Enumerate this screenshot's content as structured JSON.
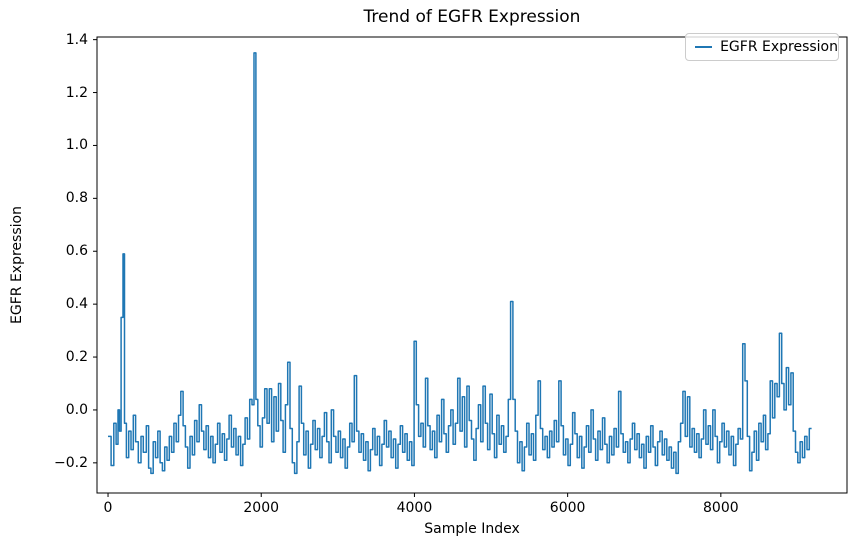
{
  "figure": {
    "background": "#ffffff",
    "spine_color": "#000000",
    "accent_color": "#1f77b4"
  },
  "chart_data": {
    "type": "line",
    "title": "Trend of EGFR Expression",
    "xlabel": "Sample Index",
    "ylabel": "EGFR Expression",
    "legend": [
      "EGFR Expression"
    ],
    "legend_position": "upper right",
    "grid": false,
    "xlim": [
      -144,
      9647
    ],
    "ylim": [
      -0.314,
      1.41
    ],
    "xticks": [
      0,
      2000,
      4000,
      6000,
      8000
    ],
    "yticks": [
      -0.2,
      0.0,
      0.2,
      0.4,
      0.6,
      0.8,
      1.0,
      1.2,
      1.4
    ],
    "series": [
      {
        "name": "EGFR Expression",
        "color": "#1f77b4",
        "points": [
          [
            0,
            -0.1
          ],
          [
            40,
            -0.21
          ],
          [
            75,
            -0.05
          ],
          [
            105,
            -0.13
          ],
          [
            130,
            0.0
          ],
          [
            150,
            -0.08
          ],
          [
            170,
            0.35
          ],
          [
            195,
            0.59
          ],
          [
            215,
            -0.05
          ],
          [
            240,
            -0.18
          ],
          [
            270,
            -0.08
          ],
          [
            300,
            -0.15
          ],
          [
            330,
            -0.02
          ],
          [
            360,
            -0.12
          ],
          [
            395,
            -0.2
          ],
          [
            430,
            -0.1
          ],
          [
            460,
            -0.16
          ],
          [
            500,
            -0.06
          ],
          [
            530,
            -0.22
          ],
          [
            560,
            -0.24
          ],
          [
            590,
            -0.12
          ],
          [
            620,
            -0.18
          ],
          [
            650,
            -0.08
          ],
          [
            680,
            -0.2
          ],
          [
            710,
            -0.23
          ],
          [
            740,
            -0.14
          ],
          [
            770,
            -0.19
          ],
          [
            800,
            -0.1
          ],
          [
            830,
            -0.16
          ],
          [
            860,
            -0.05
          ],
          [
            890,
            -0.12
          ],
          [
            920,
            -0.02
          ],
          [
            950,
            0.07
          ],
          [
            980,
            -0.06
          ],
          [
            1010,
            -0.14
          ],
          [
            1040,
            -0.22
          ],
          [
            1070,
            -0.1
          ],
          [
            1100,
            -0.17
          ],
          [
            1130,
            -0.04
          ],
          [
            1160,
            -0.12
          ],
          [
            1190,
            0.02
          ],
          [
            1220,
            -0.08
          ],
          [
            1250,
            -0.15
          ],
          [
            1280,
            -0.06
          ],
          [
            1310,
            -0.18
          ],
          [
            1340,
            -0.1
          ],
          [
            1370,
            -0.2
          ],
          [
            1400,
            -0.13
          ],
          [
            1430,
            -0.05
          ],
          [
            1460,
            -0.16
          ],
          [
            1490,
            -0.09
          ],
          [
            1520,
            -0.19
          ],
          [
            1550,
            -0.11
          ],
          [
            1580,
            -0.02
          ],
          [
            1610,
            -0.14
          ],
          [
            1640,
            -0.07
          ],
          [
            1670,
            -0.17
          ],
          [
            1700,
            -0.1
          ],
          [
            1730,
            -0.21
          ],
          [
            1760,
            -0.13
          ],
          [
            1790,
            -0.03
          ],
          [
            1820,
            -0.11
          ],
          [
            1850,
            0.04
          ],
          [
            1880,
            0.02
          ],
          [
            1905,
            1.35
          ],
          [
            1930,
            0.04
          ],
          [
            1955,
            -0.06
          ],
          [
            1985,
            -0.14
          ],
          [
            2015,
            -0.03
          ],
          [
            2045,
            0.08
          ],
          [
            2075,
            -0.05
          ],
          [
            2105,
            0.08
          ],
          [
            2135,
            -0.12
          ],
          [
            2165,
            0.05
          ],
          [
            2195,
            -0.08
          ],
          [
            2225,
            0.1
          ],
          [
            2255,
            -0.04
          ],
          [
            2285,
            -0.16
          ],
          [
            2315,
            0.02
          ],
          [
            2345,
            0.18
          ],
          [
            2375,
            -0.07
          ],
          [
            2405,
            -0.2
          ],
          [
            2435,
            -0.24
          ],
          [
            2465,
            -0.12
          ],
          [
            2495,
            0.09
          ],
          [
            2525,
            -0.05
          ],
          [
            2555,
            -0.17
          ],
          [
            2585,
            -0.08
          ],
          [
            2615,
            -0.22
          ],
          [
            2645,
            -0.13
          ],
          [
            2675,
            -0.04
          ],
          [
            2705,
            -0.15
          ],
          [
            2735,
            -0.07
          ],
          [
            2765,
            -0.18
          ],
          [
            2795,
            -0.1
          ],
          [
            2825,
            -0.01
          ],
          [
            2855,
            -0.12
          ],
          [
            2885,
            -0.2
          ],
          [
            2915,
            0.0
          ],
          [
            2945,
            -0.1
          ],
          [
            2975,
            -0.16
          ],
          [
            3005,
            -0.08
          ],
          [
            3035,
            -0.18
          ],
          [
            3065,
            -0.11
          ],
          [
            3095,
            -0.22
          ],
          [
            3125,
            -0.14
          ],
          [
            3155,
            -0.05
          ],
          [
            3185,
            -0.12
          ],
          [
            3215,
            0.13
          ],
          [
            3245,
            -0.08
          ],
          [
            3275,
            -0.16
          ],
          [
            3305,
            -0.09
          ],
          [
            3335,
            -0.19
          ],
          [
            3365,
            -0.12
          ],
          [
            3395,
            -0.23
          ],
          [
            3425,
            -0.15
          ],
          [
            3455,
            -0.07
          ],
          [
            3485,
            -0.17
          ],
          [
            3515,
            -0.1
          ],
          [
            3545,
            -0.21
          ],
          [
            3575,
            -0.13
          ],
          [
            3605,
            -0.04
          ],
          [
            3635,
            -0.14
          ],
          [
            3665,
            -0.08
          ],
          [
            3695,
            -0.18
          ],
          [
            3725,
            -0.11
          ],
          [
            3755,
            -0.22
          ],
          [
            3785,
            -0.13
          ],
          [
            3815,
            -0.06
          ],
          [
            3845,
            -0.16
          ],
          [
            3875,
            -0.09
          ],
          [
            3905,
            -0.19
          ],
          [
            3935,
            -0.12
          ],
          [
            3965,
            -0.21
          ],
          [
            3995,
            0.26
          ],
          [
            4025,
            0.02
          ],
          [
            4055,
            -0.1
          ],
          [
            4085,
            -0.05
          ],
          [
            4115,
            -0.14
          ],
          [
            4145,
            0.12
          ],
          [
            4175,
            -0.06
          ],
          [
            4205,
            -0.15
          ],
          [
            4235,
            -0.08
          ],
          [
            4265,
            -0.18
          ],
          [
            4295,
            -0.02
          ],
          [
            4325,
            -0.12
          ],
          [
            4355,
            0.04
          ],
          [
            4385,
            -0.09
          ],
          [
            4415,
            -0.16
          ],
          [
            4445,
            -0.06
          ],
          [
            4475,
            0.0
          ],
          [
            4505,
            -0.13
          ],
          [
            4535,
            -0.05
          ],
          [
            4565,
            0.12
          ],
          [
            4595,
            -0.08
          ],
          [
            4625,
            0.05
          ],
          [
            4655,
            -0.14
          ],
          [
            4685,
            0.09
          ],
          [
            4715,
            -0.04
          ],
          [
            4745,
            -0.11
          ],
          [
            4775,
            -0.19
          ],
          [
            4805,
            -0.07
          ],
          [
            4835,
            0.02
          ],
          [
            4865,
            -0.12
          ],
          [
            4895,
            0.09
          ],
          [
            4925,
            -0.05
          ],
          [
            4955,
            -0.15
          ],
          [
            4985,
            0.06
          ],
          [
            5015,
            -0.09
          ],
          [
            5045,
            -0.18
          ],
          [
            5075,
            -0.02
          ],
          [
            5105,
            -0.13
          ],
          [
            5135,
            -0.06
          ],
          [
            5165,
            -0.16
          ],
          [
            5195,
            -0.1
          ],
          [
            5225,
            0.04
          ],
          [
            5255,
            0.41
          ],
          [
            5285,
            0.04
          ],
          [
            5315,
            -0.08
          ],
          [
            5345,
            -0.2
          ],
          [
            5375,
            -0.12
          ],
          [
            5405,
            -0.23
          ],
          [
            5435,
            -0.14
          ],
          [
            5465,
            -0.05
          ],
          [
            5495,
            -0.17
          ],
          [
            5525,
            -0.09
          ],
          [
            5555,
            -0.19
          ],
          [
            5585,
            -0.02
          ],
          [
            5615,
            0.11
          ],
          [
            5645,
            -0.07
          ],
          [
            5675,
            -0.15
          ],
          [
            5705,
            -0.1
          ],
          [
            5735,
            -0.18
          ],
          [
            5765,
            -0.08
          ],
          [
            5795,
            -0.14
          ],
          [
            5825,
            -0.04
          ],
          [
            5855,
            -0.12
          ],
          [
            5885,
            0.11
          ],
          [
            5915,
            -0.06
          ],
          [
            5945,
            -0.17
          ],
          [
            5975,
            -0.11
          ],
          [
            6005,
            -0.21
          ],
          [
            6035,
            -0.13
          ],
          [
            6065,
            -0.01
          ],
          [
            6095,
            -0.09
          ],
          [
            6125,
            -0.18
          ],
          [
            6155,
            -0.1
          ],
          [
            6185,
            -0.22
          ],
          [
            6215,
            -0.14
          ],
          [
            6245,
            -0.06
          ],
          [
            6275,
            -0.16
          ],
          [
            6305,
            0.0
          ],
          [
            6335,
            -0.11
          ],
          [
            6365,
            -0.19
          ],
          [
            6395,
            -0.08
          ],
          [
            6425,
            -0.15
          ],
          [
            6455,
            -0.03
          ],
          [
            6485,
            -0.13
          ],
          [
            6515,
            -0.2
          ],
          [
            6545,
            -0.1
          ],
          [
            6575,
            -0.17
          ],
          [
            6605,
            -0.07
          ],
          [
            6635,
            -0.14
          ],
          [
            6665,
            0.07
          ],
          [
            6695,
            -0.09
          ],
          [
            6725,
            -0.16
          ],
          [
            6755,
            -0.12
          ],
          [
            6785,
            -0.2
          ],
          [
            6815,
            -0.11
          ],
          [
            6845,
            -0.05
          ],
          [
            6875,
            -0.15
          ],
          [
            6905,
            -0.09
          ],
          [
            6935,
            -0.18
          ],
          [
            6965,
            -0.13
          ],
          [
            6995,
            -0.22
          ],
          [
            7025,
            -0.1
          ],
          [
            7055,
            -0.16
          ],
          [
            7085,
            -0.06
          ],
          [
            7115,
            -0.14
          ],
          [
            7145,
            -0.21
          ],
          [
            7175,
            -0.12
          ],
          [
            7205,
            -0.08
          ],
          [
            7235,
            -0.17
          ],
          [
            7265,
            -0.11
          ],
          [
            7295,
            -0.19
          ],
          [
            7325,
            -0.14
          ],
          [
            7355,
            -0.22
          ],
          [
            7385,
            -0.16
          ],
          [
            7415,
            -0.24
          ],
          [
            7445,
            -0.12
          ],
          [
            7475,
            -0.05
          ],
          [
            7505,
            0.07
          ],
          [
            7535,
            -0.1
          ],
          [
            7565,
            0.05
          ],
          [
            7595,
            -0.14
          ],
          [
            7625,
            -0.07
          ],
          [
            7655,
            -0.16
          ],
          [
            7685,
            -0.09
          ],
          [
            7715,
            -0.18
          ],
          [
            7745,
            -0.11
          ],
          [
            7775,
            0.0
          ],
          [
            7805,
            -0.13
          ],
          [
            7835,
            -0.06
          ],
          [
            7865,
            -0.15
          ],
          [
            7895,
            0.0
          ],
          [
            7925,
            -0.1
          ],
          [
            7955,
            -0.2
          ],
          [
            7985,
            -0.12
          ],
          [
            8015,
            -0.05
          ],
          [
            8045,
            -0.14
          ],
          [
            8075,
            -0.08
          ],
          [
            8105,
            -0.17
          ],
          [
            8135,
            -0.1
          ],
          [
            8165,
            -0.21
          ],
          [
            8195,
            -0.13
          ],
          [
            8225,
            -0.07
          ],
          [
            8255,
            -0.11
          ],
          [
            8285,
            0.25
          ],
          [
            8315,
            0.11
          ],
          [
            8345,
            -0.1
          ],
          [
            8375,
            -0.23
          ],
          [
            8405,
            -0.16
          ],
          [
            8435,
            -0.08
          ],
          [
            8465,
            -0.19
          ],
          [
            8495,
            -0.05
          ],
          [
            8525,
            -0.12
          ],
          [
            8555,
            -0.02
          ],
          [
            8585,
            -0.15
          ],
          [
            8615,
            -0.09
          ],
          [
            8645,
            0.11
          ],
          [
            8675,
            -0.03
          ],
          [
            8705,
            0.1
          ],
          [
            8735,
            0.05
          ],
          [
            8765,
            0.29
          ],
          [
            8795,
            0.1
          ],
          [
            8825,
            0.0
          ],
          [
            8855,
            0.16
          ],
          [
            8885,
            0.02
          ],
          [
            8915,
            0.14
          ],
          [
            8945,
            -0.08
          ],
          [
            8975,
            -0.16
          ],
          [
            9005,
            -0.2
          ],
          [
            9035,
            -0.12
          ],
          [
            9065,
            -0.18
          ],
          [
            9095,
            -0.1
          ],
          [
            9125,
            -0.15
          ],
          [
            9155,
            -0.07
          ],
          [
            9185,
            -0.07
          ]
        ]
      }
    ]
  }
}
